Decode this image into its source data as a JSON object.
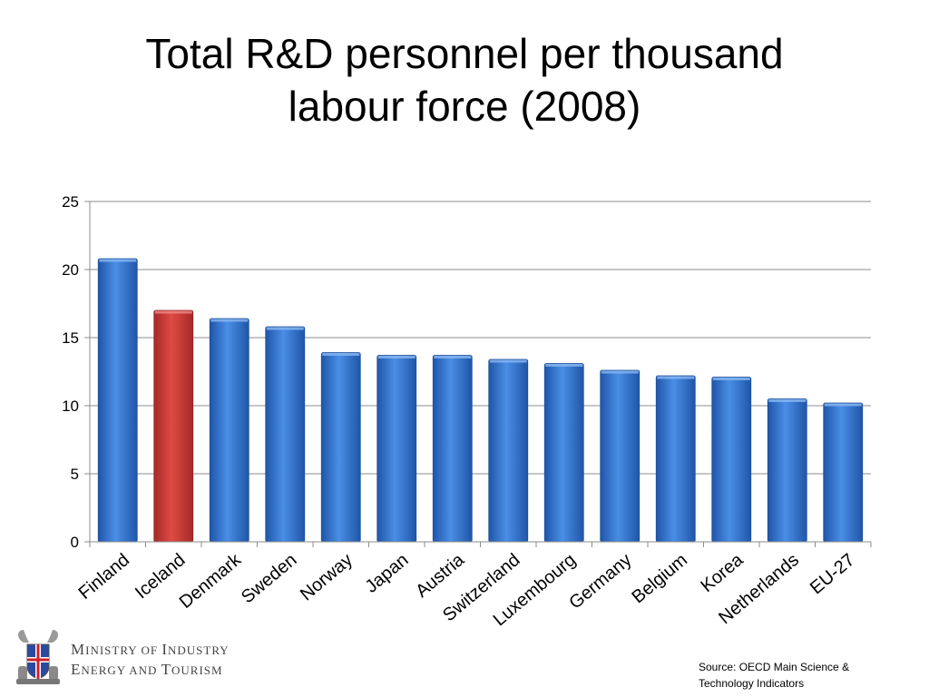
{
  "chart_data": {
    "type": "bar",
    "title_lines": [
      "Total R&D personnel per thousand",
      "labour force (2008)"
    ],
    "categories": [
      "Finland",
      "Iceland",
      "Denmark",
      "Sweden",
      "Norway",
      "Japan",
      "Austria",
      "Switzerland",
      "Luxembourg",
      "Germany",
      "Belgium",
      "Korea",
      "Netherlands",
      "EU-27"
    ],
    "values": [
      20.8,
      17.0,
      16.4,
      15.8,
      13.9,
      13.7,
      13.7,
      13.4,
      13.1,
      12.6,
      12.2,
      12.1,
      10.5,
      10.2
    ],
    "highlight_category": "Iceland",
    "yticks": [
      0,
      5,
      10,
      15,
      20,
      25
    ],
    "ylim": [
      0,
      25
    ],
    "xlabel": "",
    "ylabel": "",
    "grid": true,
    "legend": "none",
    "colors": {
      "bar": "#3a7bd5",
      "highlight": "#d63a36",
      "grid": "#8c8c8c"
    }
  },
  "footer": {
    "ministry_lines": [
      [
        {
          "c": "M",
          "s": "cap"
        },
        {
          "c": "INISTRY OF ",
          "s": "sm"
        },
        {
          "c": "I",
          "s": "cap"
        },
        {
          "c": "NDUSTRY",
          "s": "sm"
        }
      ],
      [
        {
          "c": "E",
          "s": "cap"
        },
        {
          "c": "NERGY AND ",
          "s": "sm"
        },
        {
          "c": "T",
          "s": "cap"
        },
        {
          "c": "OURISM",
          "s": "sm"
        }
      ]
    ],
    "source_lines": [
      "Source: OECD Main Science &",
      "Technology Indicators"
    ],
    "logo_icon": "iceland-coat-of-arms-icon"
  }
}
